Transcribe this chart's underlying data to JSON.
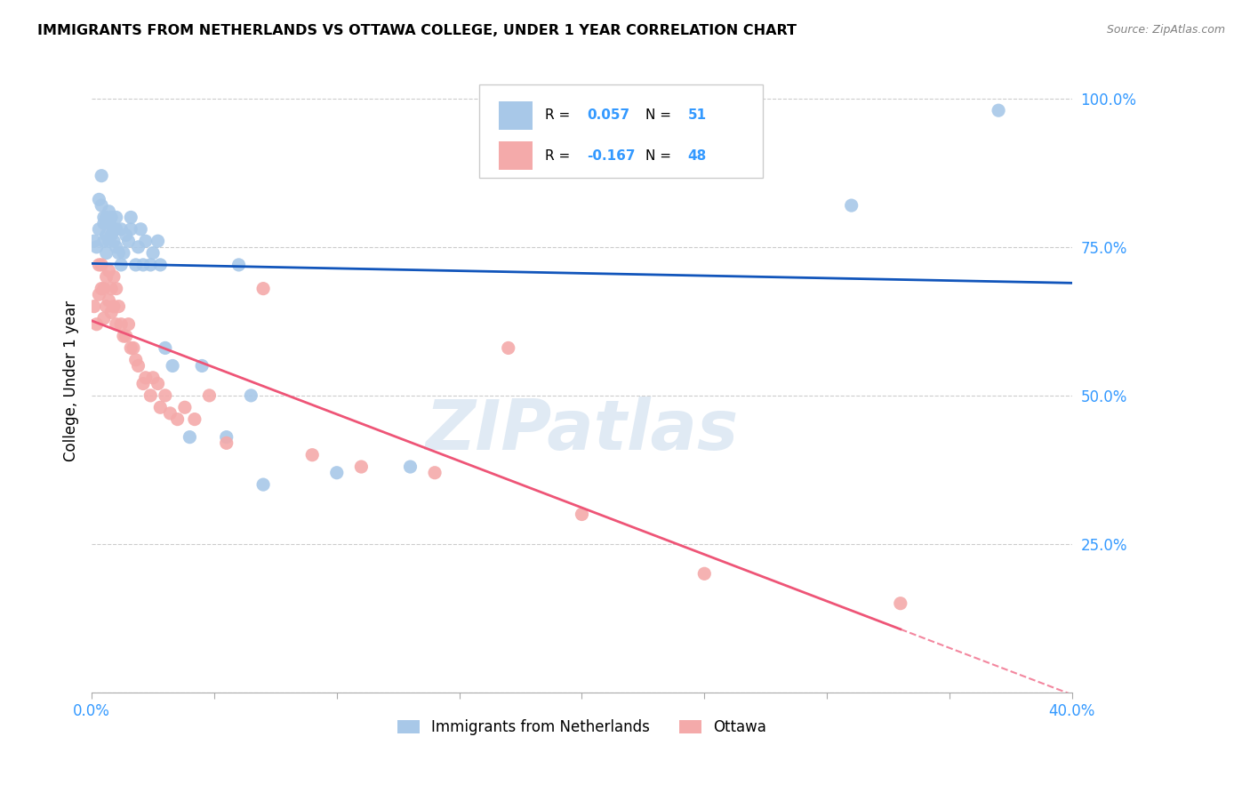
{
  "title": "IMMIGRANTS FROM NETHERLANDS VS OTTAWA COLLEGE, UNDER 1 YEAR CORRELATION CHART",
  "source": "Source: ZipAtlas.com",
  "ylabel": "College, Under 1 year",
  "watermark": "ZIPatlas",
  "legend_label1": "Immigrants from Netherlands",
  "legend_label2": "Ottawa",
  "R1": 0.057,
  "N1": 51,
  "R2": -0.167,
  "N2": 48,
  "blue_color": "#A8C8E8",
  "pink_color": "#F4AAAA",
  "line_blue": "#1155BB",
  "line_pink": "#EE5577",
  "axis_color": "#3399FF",
  "xlim": [
    0.0,
    0.4
  ],
  "ylim": [
    0.0,
    1.05
  ],
  "xtick_positions": [
    0.0,
    0.05,
    0.1,
    0.15,
    0.2,
    0.25,
    0.3,
    0.35,
    0.4
  ],
  "xtick_labels": [
    "0.0%",
    "",
    "",
    "",
    "",
    "",
    "",
    "",
    "40.0%"
  ],
  "ytick_positions": [
    0.0,
    0.25,
    0.5,
    0.75,
    1.0
  ],
  "ytick_labels": [
    "",
    "25.0%",
    "50.0%",
    "75.0%",
    "100.0%"
  ],
  "blue_x": [
    0.001,
    0.002,
    0.003,
    0.003,
    0.004,
    0.004,
    0.005,
    0.005,
    0.005,
    0.006,
    0.006,
    0.006,
    0.007,
    0.007,
    0.007,
    0.008,
    0.008,
    0.009,
    0.009,
    0.01,
    0.01,
    0.01,
    0.011,
    0.012,
    0.012,
    0.013,
    0.014,
    0.015,
    0.016,
    0.016,
    0.018,
    0.019,
    0.02,
    0.021,
    0.022,
    0.024,
    0.025,
    0.027,
    0.028,
    0.03,
    0.033,
    0.04,
    0.045,
    0.055,
    0.06,
    0.065,
    0.07,
    0.1,
    0.13,
    0.31,
    0.37
  ],
  "blue_y": [
    0.76,
    0.75,
    0.83,
    0.78,
    0.82,
    0.87,
    0.8,
    0.76,
    0.79,
    0.74,
    0.77,
    0.8,
    0.76,
    0.79,
    0.81,
    0.77,
    0.8,
    0.76,
    0.78,
    0.75,
    0.78,
    0.8,
    0.74,
    0.78,
    0.72,
    0.74,
    0.77,
    0.76,
    0.78,
    0.8,
    0.72,
    0.75,
    0.78,
    0.72,
    0.76,
    0.72,
    0.74,
    0.76,
    0.72,
    0.58,
    0.55,
    0.43,
    0.55,
    0.43,
    0.72,
    0.5,
    0.35,
    0.37,
    0.38,
    0.82,
    0.98
  ],
  "pink_x": [
    0.001,
    0.002,
    0.003,
    0.003,
    0.004,
    0.004,
    0.005,
    0.005,
    0.006,
    0.006,
    0.007,
    0.007,
    0.008,
    0.008,
    0.009,
    0.009,
    0.01,
    0.01,
    0.011,
    0.012,
    0.013,
    0.014,
    0.015,
    0.016,
    0.017,
    0.018,
    0.019,
    0.021,
    0.022,
    0.024,
    0.025,
    0.027,
    0.028,
    0.03,
    0.032,
    0.035,
    0.038,
    0.042,
    0.048,
    0.055,
    0.07,
    0.09,
    0.11,
    0.14,
    0.17,
    0.2,
    0.25,
    0.33
  ],
  "pink_y": [
    0.65,
    0.62,
    0.67,
    0.72,
    0.68,
    0.72,
    0.63,
    0.68,
    0.65,
    0.7,
    0.66,
    0.71,
    0.64,
    0.68,
    0.65,
    0.7,
    0.62,
    0.68,
    0.65,
    0.62,
    0.6,
    0.6,
    0.62,
    0.58,
    0.58,
    0.56,
    0.55,
    0.52,
    0.53,
    0.5,
    0.53,
    0.52,
    0.48,
    0.5,
    0.47,
    0.46,
    0.48,
    0.46,
    0.5,
    0.42,
    0.68,
    0.4,
    0.38,
    0.37,
    0.58,
    0.3,
    0.2,
    0.15
  ]
}
